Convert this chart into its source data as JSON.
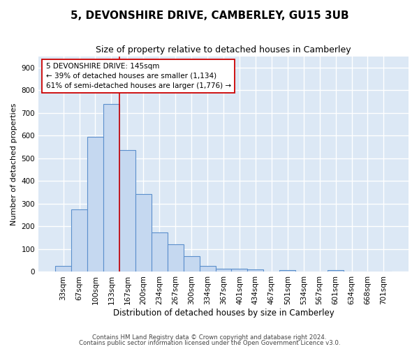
{
  "title_line1": "5, DEVONSHIRE DRIVE, CAMBERLEY, GU15 3UB",
  "title_line2": "Size of property relative to detached houses in Camberley",
  "xlabel": "Distribution of detached houses by size in Camberley",
  "ylabel": "Number of detached properties",
  "bar_labels": [
    "33sqm",
    "67sqm",
    "100sqm",
    "133sqm",
    "167sqm",
    "200sqm",
    "234sqm",
    "267sqm",
    "300sqm",
    "334sqm",
    "367sqm",
    "401sqm",
    "434sqm",
    "467sqm",
    "501sqm",
    "534sqm",
    "567sqm",
    "601sqm",
    "634sqm",
    "668sqm",
    "701sqm"
  ],
  "bar_heights": [
    25,
    275,
    595,
    740,
    538,
    342,
    175,
    120,
    68,
    25,
    13,
    14,
    10,
    0,
    9,
    0,
    0,
    8,
    0,
    0,
    0
  ],
  "bar_color": "#c5d8f0",
  "bar_edge_color": "#5b8fcc",
  "figure_bg": "#ffffff",
  "axes_bg": "#dce8f5",
  "grid_color": "#ffffff",
  "vline_color": "#cc0000",
  "annotation_text": "5 DEVONSHIRE DRIVE: 145sqm\n← 39% of detached houses are smaller (1,134)\n61% of semi-detached houses are larger (1,776) →",
  "annotation_box_color": "#ffffff",
  "annotation_box_edge": "#cc0000",
  "ylim": [
    0,
    950
  ],
  "yticks": [
    0,
    100,
    200,
    300,
    400,
    500,
    600,
    700,
    800,
    900
  ],
  "footer_line1": "Contains HM Land Registry data © Crown copyright and database right 2024.",
  "footer_line2": "Contains public sector information licensed under the Open Government Licence v3.0.",
  "bar_width": 1.0,
  "vline_bar_index": 3
}
